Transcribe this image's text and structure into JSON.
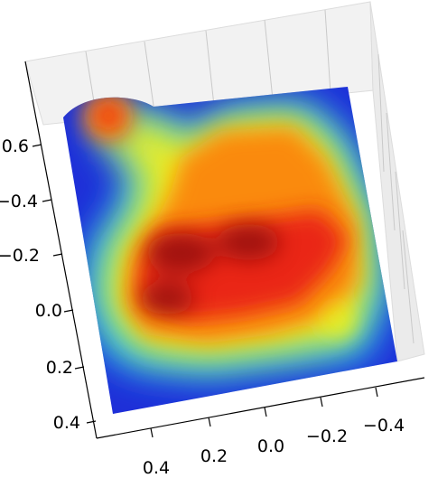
{
  "chart_data": {
    "type": "surface",
    "colormap": "jet",
    "grid": true,
    "x_ticks": [
      "0.4",
      "0.2",
      "0.0",
      "−0.2",
      "−0.4"
    ],
    "y_ticks": [
      "−0.6",
      "−0.4",
      "−0.2",
      "0.0",
      "0.2",
      "0.4"
    ],
    "x_range": [
      0.5,
      -0.5
    ],
    "y_range": [
      -0.7,
      0.45
    ],
    "peaks": [
      {
        "x": 0.15,
        "y": -0.07,
        "value": 1.0
      },
      {
        "x": 0.38,
        "y": 0.02,
        "value": 0.92
      },
      {
        "x": 0.0,
        "y": -0.12,
        "value": 0.95
      },
      {
        "x": -0.05,
        "y": -0.38,
        "value": 0.75
      },
      {
        "x": 0.2,
        "y": -0.3,
        "value": 0.72
      },
      {
        "x": -0.2,
        "y": -0.15,
        "value": 0.85
      },
      {
        "x": -0.15,
        "y": 0.12,
        "value": 0.65
      },
      {
        "x": 0.42,
        "y": -0.65,
        "value": 0.8
      }
    ]
  }
}
